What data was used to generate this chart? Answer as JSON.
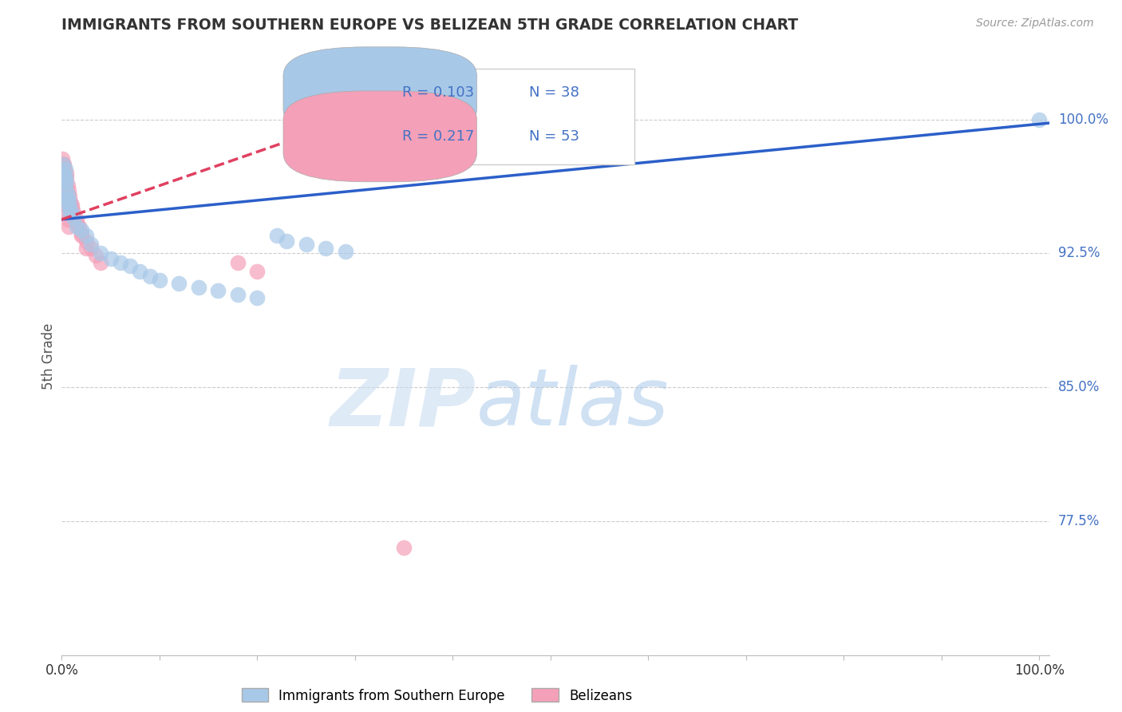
{
  "title": "IMMIGRANTS FROM SOUTHERN EUROPE VS BELIZEAN 5TH GRADE CORRELATION CHART",
  "source": "Source: ZipAtlas.com",
  "ylabel": "5th Grade",
  "legend_R1": "R = 0.103",
  "legend_N1": "N = 38",
  "legend_R2": "R = 0.217",
  "legend_N2": "N = 53",
  "legend_label1": "Immigrants from Southern Europe",
  "legend_label2": "Belizeans",
  "blue_color": "#A8C8E8",
  "pink_color": "#F4A0B8",
  "blue_line_color": "#2B5FC9",
  "pink_line_color": "#E04060",
  "text_color_blue": "#4472C4",
  "title_color": "#333333",
  "source_color": "#999999",
  "grid_color": "#CCCCCC",
  "background_color": "#FFFFFF",
  "ylim": [
    0.7,
    1.035
  ],
  "xlim": [
    0.0,
    1.01
  ],
  "ytick_vals": [
    0.775,
    0.85,
    0.925,
    1.0
  ],
  "ytick_labels": [
    "77.5%",
    "85.0%",
    "92.5%",
    "100.0%"
  ],
  "blue_scatter_x": [
    0.001,
    0.001,
    0.002,
    0.003,
    0.004,
    0.004,
    0.005,
    0.005,
    0.006,
    0.007,
    0.008,
    0.01,
    0.012,
    0.015,
    0.02,
    0.025,
    0.03,
    0.04,
    0.05,
    0.06,
    0.07,
    0.08,
    0.09,
    0.1,
    0.12,
    0.14,
    0.16,
    0.18,
    0.2,
    0.22,
    0.23,
    0.25,
    0.27,
    0.29,
    0.005,
    0.006,
    0.008,
    1.0
  ],
  "blue_scatter_y": [
    0.975,
    0.97,
    0.968,
    0.965,
    0.968,
    0.972,
    0.965,
    0.96,
    0.958,
    0.955,
    0.952,
    0.948,
    0.945,
    0.94,
    0.938,
    0.935,
    0.93,
    0.925,
    0.922,
    0.92,
    0.918,
    0.915,
    0.912,
    0.91,
    0.908,
    0.906,
    0.904,
    0.902,
    0.9,
    0.935,
    0.932,
    0.93,
    0.928,
    0.926,
    0.955,
    0.952,
    0.948,
    1.0
  ],
  "pink_scatter_x": [
    0.0002,
    0.0003,
    0.0003,
    0.0004,
    0.0005,
    0.0005,
    0.0005,
    0.0008,
    0.001,
    0.001,
    0.001,
    0.001,
    0.001,
    0.0015,
    0.0015,
    0.002,
    0.002,
    0.002,
    0.003,
    0.003,
    0.003,
    0.004,
    0.004,
    0.005,
    0.005,
    0.006,
    0.007,
    0.008,
    0.009,
    0.01,
    0.012,
    0.015,
    0.018,
    0.02,
    0.025,
    0.03,
    0.035,
    0.04,
    0.005,
    0.006,
    0.008,
    0.01,
    0.015,
    0.02,
    0.025,
    0.18,
    0.2,
    0.35,
    0.003,
    0.004,
    0.005,
    0.006,
    0.007
  ],
  "pink_scatter_y": [
    0.978,
    0.975,
    0.972,
    0.975,
    0.972,
    0.97,
    0.968,
    0.974,
    0.975,
    0.972,
    0.97,
    0.968,
    0.965,
    0.972,
    0.97,
    0.975,
    0.972,
    0.97,
    0.97,
    0.968,
    0.965,
    0.968,
    0.965,
    0.97,
    0.967,
    0.963,
    0.96,
    0.957,
    0.954,
    0.952,
    0.948,
    0.944,
    0.94,
    0.936,
    0.932,
    0.928,
    0.924,
    0.92,
    0.962,
    0.958,
    0.954,
    0.95,
    0.942,
    0.935,
    0.928,
    0.92,
    0.915,
    0.76,
    0.955,
    0.952,
    0.948,
    0.944,
    0.94
  ]
}
